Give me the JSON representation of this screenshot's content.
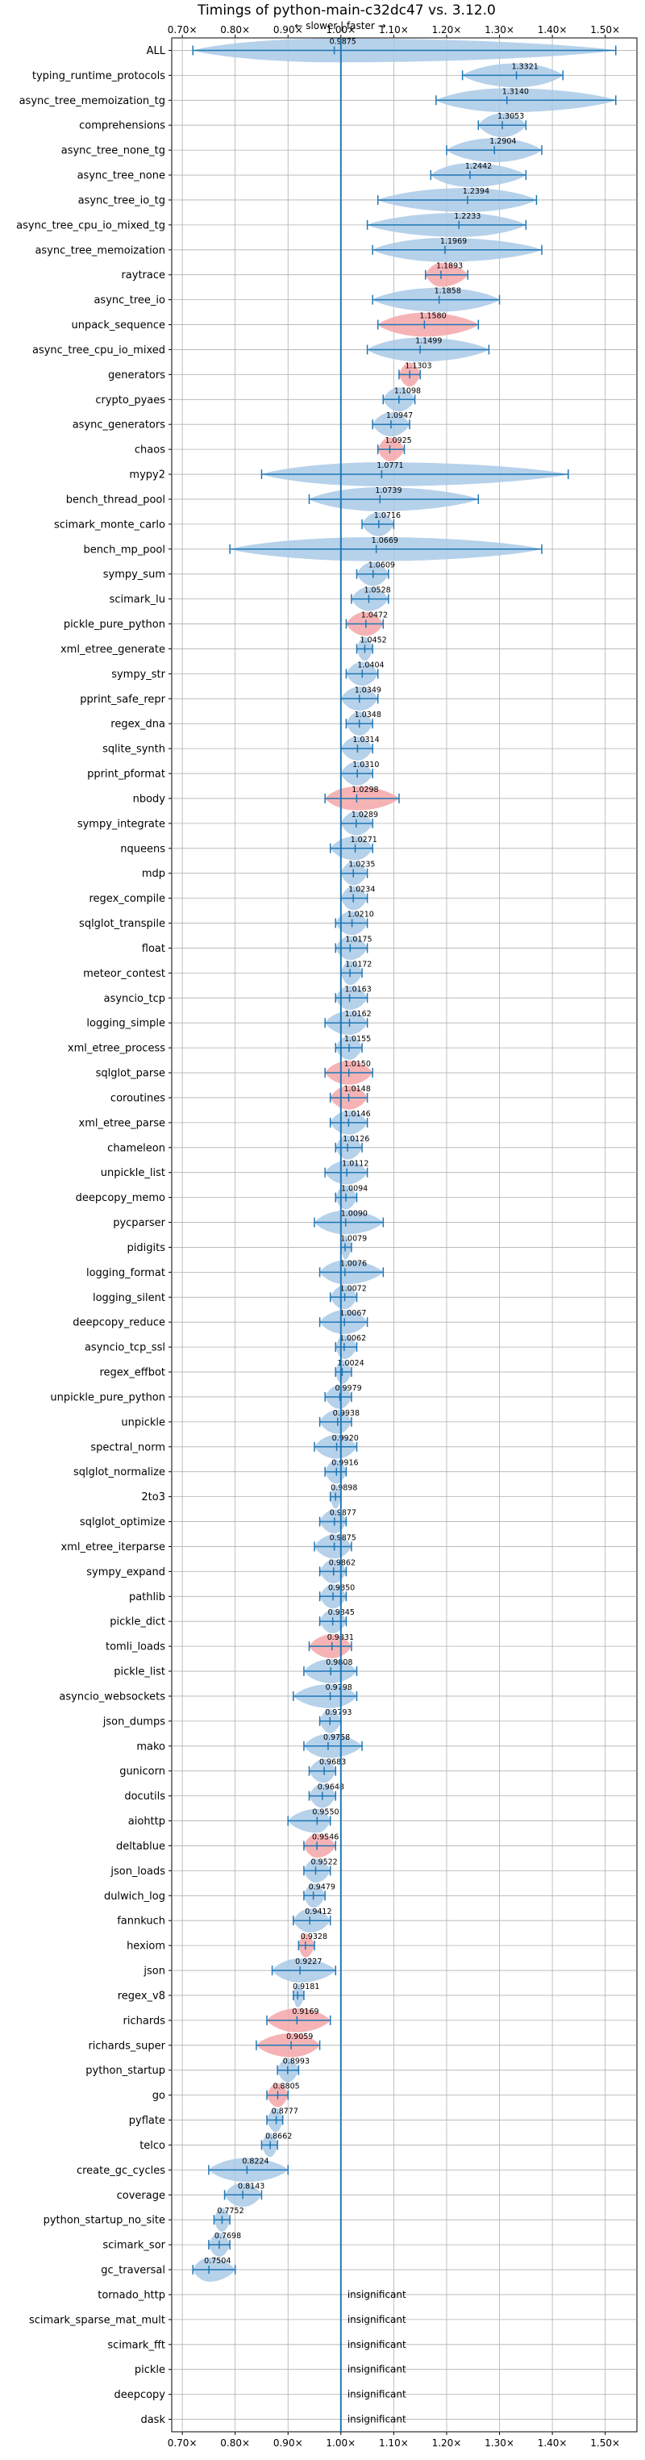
{
  "chart_data": {
    "type": "violin",
    "orientation": "horizontal",
    "title": "Timings of python-main-c32dc47 vs. 3.12.0",
    "subtitle": "← slower | faster →",
    "xlim": [
      0.68,
      1.56
    ],
    "xticks": [
      0.7,
      0.8,
      0.9,
      1.0,
      1.1,
      1.2,
      1.3,
      1.4,
      1.5
    ],
    "xtick_labels": [
      "0.70×",
      "0.80×",
      "0.90×",
      "1.00×",
      "1.10×",
      "1.20×",
      "1.30×",
      "1.40×",
      "1.50×"
    ],
    "reference_line": 1.0,
    "grid": true,
    "colors": {
      "faster": "#a9c9e6",
      "slower": "#f4a6a8",
      "line": "#1f77b4",
      "grid": "#b0b0b0"
    },
    "benchmarks": [
      {
        "name": "ALL",
        "value": 0.9875,
        "min": 0.72,
        "max": 1.52,
        "status": "faster",
        "value_label": "0.9875"
      },
      {
        "name": "typing_runtime_protocols",
        "value": 1.3321,
        "min": 1.23,
        "max": 1.42,
        "status": "faster",
        "value_label": "1.3321"
      },
      {
        "name": "async_tree_memoization_tg",
        "value": 1.314,
        "min": 1.18,
        "max": 1.52,
        "status": "faster",
        "value_label": "1.3140"
      },
      {
        "name": "comprehensions",
        "value": 1.3053,
        "min": 1.26,
        "max": 1.35,
        "status": "faster",
        "value_label": "1.3053"
      },
      {
        "name": "async_tree_none_tg",
        "value": 1.2904,
        "min": 1.2,
        "max": 1.38,
        "status": "faster",
        "value_label": "1.2904"
      },
      {
        "name": "async_tree_none",
        "value": 1.2442,
        "min": 1.17,
        "max": 1.35,
        "status": "faster",
        "value_label": "1.2442"
      },
      {
        "name": "async_tree_io_tg",
        "value": 1.2394,
        "min": 1.07,
        "max": 1.37,
        "status": "faster",
        "value_label": "1.2394"
      },
      {
        "name": "async_tree_cpu_io_mixed_tg",
        "value": 1.2233,
        "min": 1.05,
        "max": 1.35,
        "status": "faster",
        "value_label": "1.2233"
      },
      {
        "name": "async_tree_memoization",
        "value": 1.1969,
        "min": 1.06,
        "max": 1.38,
        "status": "faster",
        "value_label": "1.1969"
      },
      {
        "name": "raytrace",
        "value": 1.1893,
        "min": 1.16,
        "max": 1.24,
        "status": "slower",
        "value_label": "1.1893"
      },
      {
        "name": "async_tree_io",
        "value": 1.1858,
        "min": 1.06,
        "max": 1.3,
        "status": "faster",
        "value_label": "1.1858"
      },
      {
        "name": "unpack_sequence",
        "value": 1.158,
        "min": 1.07,
        "max": 1.26,
        "status": "slower",
        "value_label": "1.1580"
      },
      {
        "name": "async_tree_cpu_io_mixed",
        "value": 1.1499,
        "min": 1.05,
        "max": 1.28,
        "status": "faster",
        "value_label": "1.1499"
      },
      {
        "name": "generators",
        "value": 1.1303,
        "min": 1.11,
        "max": 1.15,
        "status": "slower",
        "value_label": "1.1303"
      },
      {
        "name": "crypto_pyaes",
        "value": 1.1098,
        "min": 1.08,
        "max": 1.14,
        "status": "faster",
        "value_label": "1.1098"
      },
      {
        "name": "async_generators",
        "value": 1.0947,
        "min": 1.06,
        "max": 1.13,
        "status": "faster",
        "value_label": "1.0947"
      },
      {
        "name": "chaos",
        "value": 1.0925,
        "min": 1.07,
        "max": 1.12,
        "status": "slower",
        "value_label": "1.0925"
      },
      {
        "name": "mypy2",
        "value": 1.0771,
        "min": 0.85,
        "max": 1.43,
        "status": "faster",
        "value_label": "1.0771"
      },
      {
        "name": "bench_thread_pool",
        "value": 1.0739,
        "min": 0.94,
        "max": 1.26,
        "status": "faster",
        "value_label": "1.0739"
      },
      {
        "name": "scimark_monte_carlo",
        "value": 1.0716,
        "min": 1.04,
        "max": 1.1,
        "status": "faster",
        "value_label": "1.0716"
      },
      {
        "name": "bench_mp_pool",
        "value": 1.0669,
        "min": 0.79,
        "max": 1.38,
        "status": "faster",
        "value_label": "1.0669"
      },
      {
        "name": "sympy_sum",
        "value": 1.0609,
        "min": 1.03,
        "max": 1.09,
        "status": "faster",
        "value_label": "1.0609"
      },
      {
        "name": "scimark_lu",
        "value": 1.0528,
        "min": 1.02,
        "max": 1.09,
        "status": "faster",
        "value_label": "1.0528"
      },
      {
        "name": "pickle_pure_python",
        "value": 1.0472,
        "min": 1.01,
        "max": 1.08,
        "status": "slower",
        "value_label": "1.0472"
      },
      {
        "name": "xml_etree_generate",
        "value": 1.0452,
        "min": 1.03,
        "max": 1.06,
        "status": "faster",
        "value_label": "1.0452"
      },
      {
        "name": "sympy_str",
        "value": 1.0404,
        "min": 1.01,
        "max": 1.07,
        "status": "faster",
        "value_label": "1.0404"
      },
      {
        "name": "pprint_safe_repr",
        "value": 1.0349,
        "min": 1.0,
        "max": 1.07,
        "status": "faster",
        "value_label": "1.0349"
      },
      {
        "name": "regex_dna",
        "value": 1.0348,
        "min": 1.01,
        "max": 1.06,
        "status": "faster",
        "value_label": "1.0348"
      },
      {
        "name": "sqlite_synth",
        "value": 1.0314,
        "min": 1.0,
        "max": 1.06,
        "status": "faster",
        "value_label": "1.0314"
      },
      {
        "name": "pprint_pformat",
        "value": 1.031,
        "min": 1.0,
        "max": 1.06,
        "status": "faster",
        "value_label": "1.0310"
      },
      {
        "name": "nbody",
        "value": 1.0298,
        "min": 0.97,
        "max": 1.11,
        "status": "slower",
        "value_label": "1.0298"
      },
      {
        "name": "sympy_integrate",
        "value": 1.0289,
        "min": 1.0,
        "max": 1.06,
        "status": "faster",
        "value_label": "1.0289"
      },
      {
        "name": "nqueens",
        "value": 1.0271,
        "min": 0.98,
        "max": 1.06,
        "status": "faster",
        "value_label": "1.0271"
      },
      {
        "name": "mdp",
        "value": 1.0235,
        "min": 1.0,
        "max": 1.05,
        "status": "faster",
        "value_label": "1.0235"
      },
      {
        "name": "regex_compile",
        "value": 1.0234,
        "min": 1.0,
        "max": 1.05,
        "status": "faster",
        "value_label": "1.0234"
      },
      {
        "name": "sqlglot_transpile",
        "value": 1.021,
        "min": 0.99,
        "max": 1.05,
        "status": "faster",
        "value_label": "1.0210"
      },
      {
        "name": "float",
        "value": 1.0175,
        "min": 0.99,
        "max": 1.05,
        "status": "faster",
        "value_label": "1.0175"
      },
      {
        "name": "meteor_contest",
        "value": 1.0172,
        "min": 1.0,
        "max": 1.04,
        "status": "faster",
        "value_label": "1.0172"
      },
      {
        "name": "asyncio_tcp",
        "value": 1.0163,
        "min": 0.99,
        "max": 1.05,
        "status": "faster",
        "value_label": "1.0163"
      },
      {
        "name": "logging_simple",
        "value": 1.0162,
        "min": 0.97,
        "max": 1.05,
        "status": "faster",
        "value_label": "1.0162"
      },
      {
        "name": "xml_etree_process",
        "value": 1.0155,
        "min": 0.99,
        "max": 1.04,
        "status": "faster",
        "value_label": "1.0155"
      },
      {
        "name": "sqlglot_parse",
        "value": 1.015,
        "min": 0.97,
        "max": 1.06,
        "status": "slower",
        "value_label": "1.0150"
      },
      {
        "name": "coroutines",
        "value": 1.0148,
        "min": 0.98,
        "max": 1.05,
        "status": "slower",
        "value_label": "1.0148"
      },
      {
        "name": "xml_etree_parse",
        "value": 1.0146,
        "min": 0.98,
        "max": 1.05,
        "status": "faster",
        "value_label": "1.0146"
      },
      {
        "name": "chameleon",
        "value": 1.0126,
        "min": 0.99,
        "max": 1.04,
        "status": "faster",
        "value_label": "1.0126"
      },
      {
        "name": "unpickle_list",
        "value": 1.0112,
        "min": 0.97,
        "max": 1.05,
        "status": "faster",
        "value_label": "1.0112"
      },
      {
        "name": "deepcopy_memo",
        "value": 1.0094,
        "min": 0.99,
        "max": 1.03,
        "status": "faster",
        "value_label": "1.0094"
      },
      {
        "name": "pycparser",
        "value": 1.009,
        "min": 0.95,
        "max": 1.08,
        "status": "faster",
        "value_label": "1.0090"
      },
      {
        "name": "pidigits",
        "value": 1.0079,
        "min": 1.0,
        "max": 1.02,
        "status": "faster",
        "value_label": "1.0079"
      },
      {
        "name": "logging_format",
        "value": 1.0076,
        "min": 0.96,
        "max": 1.08,
        "status": "faster",
        "value_label": "1.0076"
      },
      {
        "name": "logging_silent",
        "value": 1.0072,
        "min": 0.98,
        "max": 1.03,
        "status": "faster",
        "value_label": "1.0072"
      },
      {
        "name": "deepcopy_reduce",
        "value": 1.0067,
        "min": 0.96,
        "max": 1.05,
        "status": "faster",
        "value_label": "1.0067"
      },
      {
        "name": "asyncio_tcp_ssl",
        "value": 1.0062,
        "min": 0.99,
        "max": 1.03,
        "status": "faster",
        "value_label": "1.0062"
      },
      {
        "name": "regex_effbot",
        "value": 1.0024,
        "min": 0.99,
        "max": 1.02,
        "status": "faster",
        "value_label": "1.0024"
      },
      {
        "name": "unpickle_pure_python",
        "value": 0.9979,
        "min": 0.97,
        "max": 1.02,
        "status": "faster",
        "value_label": "0.9979"
      },
      {
        "name": "unpickle",
        "value": 0.9938,
        "min": 0.96,
        "max": 1.02,
        "status": "faster",
        "value_label": "0.9938"
      },
      {
        "name": "spectral_norm",
        "value": 0.992,
        "min": 0.95,
        "max": 1.03,
        "status": "faster",
        "value_label": "0.9920"
      },
      {
        "name": "sqlglot_normalize",
        "value": 0.9916,
        "min": 0.97,
        "max": 1.01,
        "status": "faster",
        "value_label": "0.9916"
      },
      {
        "name": "2to3",
        "value": 0.9898,
        "min": 0.98,
        "max": 1.0,
        "status": "faster",
        "value_label": "0.9898"
      },
      {
        "name": "sqlglot_optimize",
        "value": 0.9877,
        "min": 0.96,
        "max": 1.01,
        "status": "faster",
        "value_label": "0.9877"
      },
      {
        "name": "xml_etree_iterparse",
        "value": 0.9875,
        "min": 0.95,
        "max": 1.02,
        "status": "faster",
        "value_label": "0.9875"
      },
      {
        "name": "sympy_expand",
        "value": 0.9862,
        "min": 0.96,
        "max": 1.01,
        "status": "faster",
        "value_label": "0.9862"
      },
      {
        "name": "pathlib",
        "value": 0.985,
        "min": 0.96,
        "max": 1.01,
        "status": "faster",
        "value_label": "0.9850"
      },
      {
        "name": "pickle_dict",
        "value": 0.9845,
        "min": 0.96,
        "max": 1.01,
        "status": "faster",
        "value_label": "0.9845"
      },
      {
        "name": "tomli_loads",
        "value": 0.9831,
        "min": 0.94,
        "max": 1.02,
        "status": "slower",
        "value_label": "0.9831"
      },
      {
        "name": "pickle_list",
        "value": 0.9808,
        "min": 0.93,
        "max": 1.03,
        "status": "faster",
        "value_label": "0.9808"
      },
      {
        "name": "asyncio_websockets",
        "value": 0.9798,
        "min": 0.91,
        "max": 1.03,
        "status": "faster",
        "value_label": "0.9798"
      },
      {
        "name": "json_dumps",
        "value": 0.9793,
        "min": 0.96,
        "max": 1.0,
        "status": "faster",
        "value_label": "0.9793"
      },
      {
        "name": "mako",
        "value": 0.9758,
        "min": 0.93,
        "max": 1.04,
        "status": "faster",
        "value_label": "0.9758"
      },
      {
        "name": "gunicorn",
        "value": 0.9683,
        "min": 0.94,
        "max": 0.99,
        "status": "faster",
        "value_label": "0.9683"
      },
      {
        "name": "docutils",
        "value": 0.9648,
        "min": 0.94,
        "max": 0.99,
        "status": "faster",
        "value_label": "0.9648"
      },
      {
        "name": "aiohttp",
        "value": 0.955,
        "min": 0.9,
        "max": 0.98,
        "status": "faster",
        "value_label": "0.9550"
      },
      {
        "name": "deltablue",
        "value": 0.9546,
        "min": 0.93,
        "max": 0.99,
        "status": "slower",
        "value_label": "0.9546"
      },
      {
        "name": "json_loads",
        "value": 0.9522,
        "min": 0.93,
        "max": 0.98,
        "status": "faster",
        "value_label": "0.9522"
      },
      {
        "name": "dulwich_log",
        "value": 0.9479,
        "min": 0.93,
        "max": 0.97,
        "status": "faster",
        "value_label": "0.9479"
      },
      {
        "name": "fannkuch",
        "value": 0.9412,
        "min": 0.91,
        "max": 0.98,
        "status": "faster",
        "value_label": "0.9412"
      },
      {
        "name": "hexiom",
        "value": 0.9328,
        "min": 0.92,
        "max": 0.95,
        "status": "slower",
        "value_label": "0.9328"
      },
      {
        "name": "json",
        "value": 0.9227,
        "min": 0.87,
        "max": 0.99,
        "status": "faster",
        "value_label": "0.9227"
      },
      {
        "name": "regex_v8",
        "value": 0.9181,
        "min": 0.91,
        "max": 0.93,
        "status": "faster",
        "value_label": "0.9181"
      },
      {
        "name": "richards",
        "value": 0.9169,
        "min": 0.86,
        "max": 0.98,
        "status": "slower",
        "value_label": "0.9169"
      },
      {
        "name": "richards_super",
        "value": 0.9059,
        "min": 0.84,
        "max": 0.96,
        "status": "slower",
        "value_label": "0.9059"
      },
      {
        "name": "python_startup",
        "value": 0.8993,
        "min": 0.88,
        "max": 0.92,
        "status": "faster",
        "value_label": "0.8993"
      },
      {
        "name": "go",
        "value": 0.8805,
        "min": 0.86,
        "max": 0.9,
        "status": "slower",
        "value_label": "0.8805"
      },
      {
        "name": "pyflate",
        "value": 0.8777,
        "min": 0.86,
        "max": 0.89,
        "status": "faster",
        "value_label": "0.8777"
      },
      {
        "name": "telco",
        "value": 0.8662,
        "min": 0.85,
        "max": 0.88,
        "status": "faster",
        "value_label": "0.8662"
      },
      {
        "name": "create_gc_cycles",
        "value": 0.8224,
        "min": 0.75,
        "max": 0.9,
        "status": "faster",
        "value_label": "0.8224"
      },
      {
        "name": "coverage",
        "value": 0.8143,
        "min": 0.78,
        "max": 0.85,
        "status": "faster",
        "value_label": "0.8143"
      },
      {
        "name": "python_startup_no_site",
        "value": 0.7752,
        "min": 0.76,
        "max": 0.79,
        "status": "faster",
        "value_label": "0.7752"
      },
      {
        "name": "scimark_sor",
        "value": 0.7698,
        "min": 0.75,
        "max": 0.79,
        "status": "faster",
        "value_label": "0.7698"
      },
      {
        "name": "gc_traversal",
        "value": 0.7504,
        "min": 0.72,
        "max": 0.8,
        "status": "faster",
        "value_label": "0.7504"
      },
      {
        "name": "tornado_http",
        "value": null,
        "status": "insignificant",
        "value_label": "insignificant"
      },
      {
        "name": "scimark_sparse_mat_mult",
        "value": null,
        "status": "insignificant",
        "value_label": "insignificant"
      },
      {
        "name": "scimark_fft",
        "value": null,
        "status": "insignificant",
        "value_label": "insignificant"
      },
      {
        "name": "pickle",
        "value": null,
        "status": "insignificant",
        "value_label": "insignificant"
      },
      {
        "name": "deepcopy",
        "value": null,
        "status": "insignificant",
        "value_label": "insignificant"
      },
      {
        "name": "dask",
        "value": null,
        "status": "insignificant",
        "value_label": "insignificant"
      }
    ]
  }
}
